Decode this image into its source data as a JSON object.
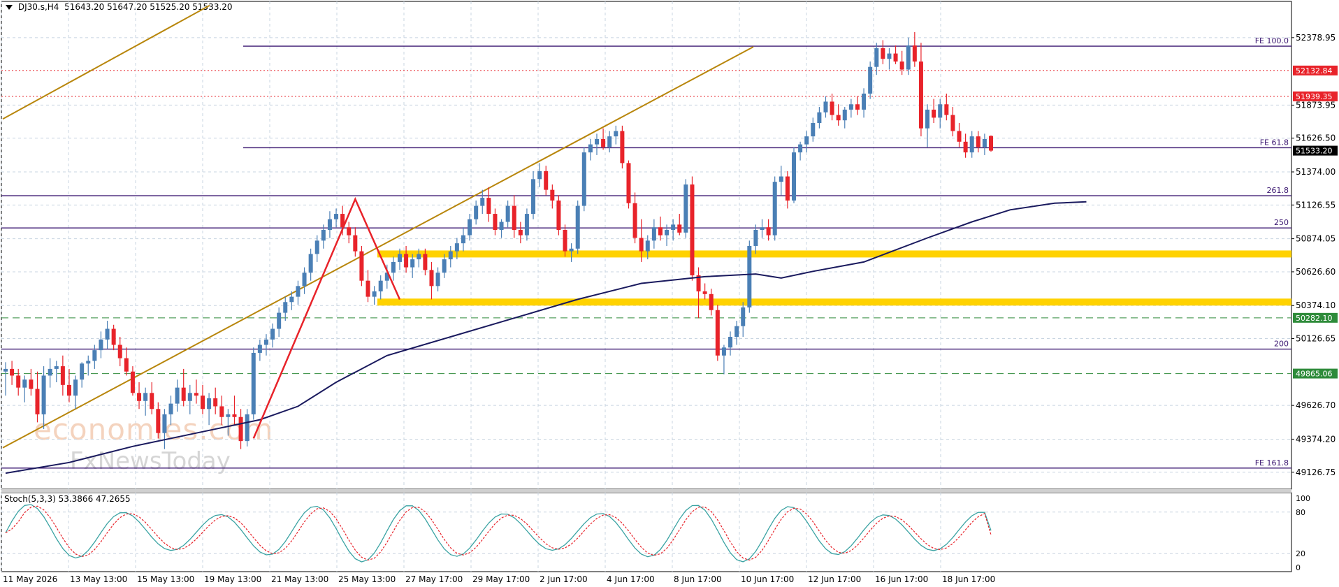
{
  "header": {
    "symbol": "DJ30.s,H4",
    "ohlc": "51643.20  51647.20  51525.20  51533.20"
  },
  "indicator": {
    "label": "Stoch(5,3,3) 53.3866 47.2655"
  },
  "watermark": {
    "line1": "economies.com",
    "line2": "FxNewsToday"
  },
  "colors": {
    "bull": "#4a7fb5",
    "bear": "#e8232a",
    "ma": "#1a1a5e",
    "level": "#3a1670",
    "zone": "#ffd200",
    "trend": "#b8860b",
    "green": "#2e8b3a",
    "red": "#e8232a",
    "zigzag": "#e8232a",
    "stoch_k": "#3aa3a3",
    "stoch_d": "#e8232a"
  },
  "chart_data": {
    "type": "candlestick",
    "symbol": "DJ30.s",
    "timeframe": "H4",
    "ylim": [
      49000,
      52650
    ],
    "y_ticks": [
      "52378.95",
      "51873.95",
      "51626.50",
      "51374.00",
      "51126.55",
      "50874.05",
      "50626.60",
      "50374.10",
      "50126.65",
      "49626.70",
      "49374.20",
      "49126.75"
    ],
    "x_ticks": [
      "11 May 2026",
      "13 May 13:00",
      "15 May 13:00",
      "19 May 13:00",
      "21 May 13:00",
      "25 May 13:00",
      "27 May 17:00",
      "29 May 17:00",
      "2 Jun 17:00",
      "4 Jun 17:00",
      "8 Jun 17:00",
      "10 Jun 17:00",
      "12 Jun 17:00",
      "16 Jun 17:00",
      "18 Jun 17:00"
    ],
    "price_tags": [
      {
        "label": "52132.84",
        "value": 52132.84,
        "color": "#e8232a"
      },
      {
        "label": "51939.35",
        "value": 51939.35,
        "color": "#e8232a"
      },
      {
        "label": "51533.20",
        "value": 51533.2,
        "color": "#000000"
      },
      {
        "label": "50282.10",
        "value": 50282.1,
        "color": "#2e8b3a"
      },
      {
        "label": "49865.06",
        "value": 49865.06,
        "color": "#2e8b3a"
      }
    ],
    "fib_levels": [
      {
        "label": "FE 100.0",
        "value": 52315
      },
      {
        "label": "FE 61.8",
        "value": 51555
      },
      {
        "label": "261.8",
        "value": 51196
      },
      {
        "label": "250",
        "value": 50955
      },
      {
        "label": "200",
        "value": 50048
      },
      {
        "label": "FE 161.8",
        "value": 49158
      }
    ],
    "support_zones": [
      50760,
      50400
    ],
    "ohlc": [
      [
        49880,
        49950,
        49700,
        49900
      ],
      [
        49900,
        49960,
        49780,
        49850
      ],
      [
        49850,
        49900,
        49700,
        49760
      ],
      [
        49760,
        49850,
        49650,
        49820
      ],
      [
        49820,
        49900,
        49700,
        49750
      ],
      [
        49750,
        49880,
        49500,
        49560
      ],
      [
        49560,
        49920,
        49450,
        49850
      ],
      [
        49850,
        49980,
        49760,
        49900
      ],
      [
        49900,
        49960,
        49800,
        49920
      ],
      [
        49920,
        50000,
        49700,
        49780
      ],
      [
        49780,
        49900,
        49650,
        49700
      ],
      [
        49700,
        49850,
        49600,
        49820
      ],
      [
        49820,
        49950,
        49760,
        49940
      ],
      [
        49940,
        50000,
        49850,
        49960
      ],
      [
        49960,
        50080,
        49900,
        50040
      ],
      [
        50040,
        50180,
        49980,
        50120
      ],
      [
        50120,
        50260,
        50050,
        50200
      ],
      [
        50200,
        50230,
        50040,
        50080
      ],
      [
        50080,
        50140,
        49920,
        49980
      ],
      [
        49980,
        50060,
        49850,
        49880
      ],
      [
        49880,
        49920,
        49700,
        49720
      ],
      [
        49720,
        49800,
        49600,
        49660
      ],
      [
        49660,
        49760,
        49550,
        49720
      ],
      [
        49720,
        49800,
        49560,
        49600
      ],
      [
        49600,
        49650,
        49380,
        49420
      ],
      [
        49420,
        49600,
        49300,
        49560
      ],
      [
        49560,
        49700,
        49480,
        49640
      ],
      [
        49640,
        49820,
        49580,
        49760
      ],
      [
        49760,
        49900,
        49620,
        49660
      ],
      [
        49660,
        49780,
        49560,
        49720
      ],
      [
        49720,
        49820,
        49640,
        49700
      ],
      [
        49700,
        49780,
        49560,
        49600
      ],
      [
        49600,
        49720,
        49480,
        49680
      ],
      [
        49680,
        49760,
        49560,
        49620
      ],
      [
        49620,
        49700,
        49480,
        49540
      ],
      [
        49540,
        49600,
        49400,
        49560
      ],
      [
        49560,
        49700,
        49480,
        49540
      ],
      [
        49540,
        49600,
        49300,
        49360
      ],
      [
        49360,
        49600,
        49320,
        49560
      ],
      [
        49560,
        50060,
        49520,
        50020
      ],
      [
        50020,
        50120,
        49960,
        50080
      ],
      [
        50080,
        50160,
        50000,
        50120
      ],
      [
        50120,
        50240,
        50060,
        50200
      ],
      [
        50200,
        50360,
        50140,
        50320
      ],
      [
        50320,
        50440,
        50260,
        50400
      ],
      [
        50400,
        50480,
        50340,
        50440
      ],
      [
        50440,
        50560,
        50380,
        50520
      ],
      [
        50520,
        50660,
        50460,
        50620
      ],
      [
        50620,
        50800,
        50560,
        50760
      ],
      [
        50760,
        50900,
        50700,
        50860
      ],
      [
        50860,
        50980,
        50800,
        50940
      ],
      [
        50940,
        51080,
        50880,
        51020
      ],
      [
        51020,
        51100,
        50960,
        51060
      ],
      [
        51060,
        51120,
        50900,
        50960
      ],
      [
        50960,
        51000,
        50840,
        50900
      ],
      [
        50900,
        50960,
        50740,
        50780
      ],
      [
        50780,
        50820,
        50520,
        50560
      ],
      [
        50560,
        50640,
        50400,
        50440
      ],
      [
        50440,
        50520,
        50380,
        50480
      ],
      [
        50480,
        50600,
        50420,
        50560
      ],
      [
        50560,
        50680,
        50500,
        50620
      ],
      [
        50620,
        50740,
        50560,
        50700
      ],
      [
        50700,
        50800,
        50640,
        50760
      ],
      [
        50760,
        50820,
        50620,
        50660
      ],
      [
        50660,
        50760,
        50580,
        50720
      ],
      [
        50720,
        50800,
        50660,
        50760
      ],
      [
        50760,
        50800,
        50600,
        50640
      ],
      [
        50640,
        50700,
        50420,
        50520
      ],
      [
        50520,
        50660,
        50480,
        50620
      ],
      [
        50620,
        50760,
        50580,
        50720
      ],
      [
        50720,
        50820,
        50660,
        50780
      ],
      [
        50780,
        50880,
        50720,
        50840
      ],
      [
        50840,
        50960,
        50780,
        50900
      ],
      [
        50900,
        51060,
        50860,
        51020
      ],
      [
        51020,
        51160,
        50980,
        51120
      ],
      [
        51120,
        51240,
        51060,
        51180
      ],
      [
        51180,
        51260,
        51000,
        51060
      ],
      [
        51060,
        51100,
        50900,
        50940
      ],
      [
        50940,
        51020,
        50880,
        51000
      ],
      [
        51000,
        51160,
        50960,
        51120
      ],
      [
        51120,
        51200,
        50880,
        50940
      ],
      [
        50940,
        51000,
        50840,
        50900
      ],
      [
        50900,
        51100,
        50860,
        51060
      ],
      [
        51060,
        51380,
        51020,
        51320
      ],
      [
        51320,
        51440,
        51260,
        51380
      ],
      [
        51380,
        51420,
        51200,
        51240
      ],
      [
        51240,
        51280,
        51100,
        51160
      ],
      [
        51160,
        51200,
        50900,
        50940
      ],
      [
        50940,
        50980,
        50740,
        50780
      ],
      [
        50780,
        50840,
        50700,
        50800
      ],
      [
        50800,
        51160,
        50760,
        51120
      ],
      [
        51120,
        51560,
        51080,
        51520
      ],
      [
        51520,
        51620,
        51460,
        51580
      ],
      [
        51580,
        51660,
        51500,
        51620
      ],
      [
        51620,
        51700,
        51540,
        51560
      ],
      [
        51560,
        51680,
        51520,
        51640
      ],
      [
        51640,
        51720,
        51580,
        51680
      ],
      [
        51680,
        51720,
        51400,
        51440
      ],
      [
        51440,
        51460,
        51100,
        51140
      ],
      [
        51140,
        51220,
        50840,
        50880
      ],
      [
        50880,
        51020,
        50700,
        50780
      ],
      [
        50780,
        50900,
        50720,
        50860
      ],
      [
        50860,
        51020,
        50800,
        50960
      ],
      [
        50960,
        51040,
        50860,
        50900
      ],
      [
        50900,
        50980,
        50820,
        50940
      ],
      [
        50940,
        51020,
        50860,
        50980
      ],
      [
        50980,
        51060,
        50900,
        50920
      ],
      [
        50920,
        51320,
        50880,
        51280
      ],
      [
        51280,
        51340,
        50560,
        50600
      ],
      [
        50600,
        50660,
        50280,
        50480
      ],
      [
        50480,
        50540,
        50420,
        50460
      ],
      [
        50460,
        50500,
        50300,
        50340
      ],
      [
        50340,
        50380,
        49960,
        50000
      ],
      [
        50000,
        50080,
        49860,
        50060
      ],
      [
        50060,
        50180,
        50000,
        50140
      ],
      [
        50140,
        50260,
        50080,
        50220
      ],
      [
        50220,
        50400,
        50140,
        50360
      ],
      [
        50360,
        50860,
        50320,
        50820
      ],
      [
        50820,
        50980,
        50760,
        50940
      ],
      [
        50940,
        51020,
        50880,
        50960
      ],
      [
        50960,
        51020,
        50860,
        50900
      ],
      [
        50900,
        51340,
        50860,
        51300
      ],
      [
        51300,
        51420,
        51200,
        51340
      ],
      [
        51340,
        51380,
        51100,
        51160
      ],
      [
        51160,
        51560,
        51140,
        51520
      ],
      [
        51520,
        51600,
        51460,
        51580
      ],
      [
        51580,
        51680,
        51520,
        51640
      ],
      [
        51640,
        51780,
        51600,
        51740
      ],
      [
        51740,
        51860,
        51700,
        51820
      ],
      [
        51820,
        51940,
        51780,
        51900
      ],
      [
        51900,
        51960,
        51760,
        51800
      ],
      [
        51800,
        51880,
        51720,
        51760
      ],
      [
        51760,
        51860,
        51700,
        51840
      ],
      [
        51840,
        51920,
        51780,
        51880
      ],
      [
        51880,
        51940,
        51800,
        51840
      ],
      [
        51840,
        52000,
        51780,
        51960
      ],
      [
        51960,
        52200,
        51920,
        52160
      ],
      [
        52160,
        52340,
        52100,
        52300
      ],
      [
        52300,
        52360,
        52180,
        52220
      ],
      [
        52220,
        52300,
        52140,
        52260
      ],
      [
        52260,
        52320,
        52180,
        52200
      ],
      [
        52200,
        52280,
        52100,
        52140
      ],
      [
        52140,
        52380,
        52100,
        52320
      ],
      [
        52320,
        52420,
        52160,
        52200
      ],
      [
        52200,
        52340,
        51640,
        51700
      ],
      [
        51700,
        51880,
        51560,
        51840
      ],
      [
        51840,
        51920,
        51740,
        51780
      ],
      [
        51780,
        51920,
        51700,
        51880
      ],
      [
        51880,
        51960,
        51760,
        51800
      ],
      [
        51800,
        51860,
        51640,
        51680
      ],
      [
        51680,
        51740,
        51560,
        51600
      ],
      [
        51600,
        51660,
        51480,
        51520
      ],
      [
        51520,
        51680,
        51480,
        51640
      ],
      [
        51640,
        51680,
        51520,
        51560
      ],
      [
        51560,
        51660,
        51500,
        51620
      ],
      [
        51643.2,
        51647.2,
        51525.2,
        51533.2
      ]
    ],
    "ma": [
      [
        0,
        49120
      ],
      [
        10,
        49200
      ],
      [
        20,
        49320
      ],
      [
        30,
        49420
      ],
      [
        40,
        49520
      ],
      [
        46,
        49620
      ],
      [
        52,
        49800
      ],
      [
        60,
        50000
      ],
      [
        70,
        50140
      ],
      [
        80,
        50280
      ],
      [
        90,
        50420
      ],
      [
        100,
        50540
      ],
      [
        110,
        50590
      ],
      [
        118,
        50610
      ],
      [
        122,
        50580
      ],
      [
        127,
        50630
      ],
      [
        135,
        50700
      ],
      [
        145,
        50880
      ],
      [
        152,
        51000
      ],
      [
        158,
        51090
      ],
      [
        165,
        51140
      ],
      [
        170,
        51150
      ]
    ],
    "stochastic": {
      "k_label": "Stoch(5,3,3)",
      "k": 53.3866,
      "d": 47.2655,
      "levels": [
        100,
        80,
        20,
        0
      ]
    }
  }
}
